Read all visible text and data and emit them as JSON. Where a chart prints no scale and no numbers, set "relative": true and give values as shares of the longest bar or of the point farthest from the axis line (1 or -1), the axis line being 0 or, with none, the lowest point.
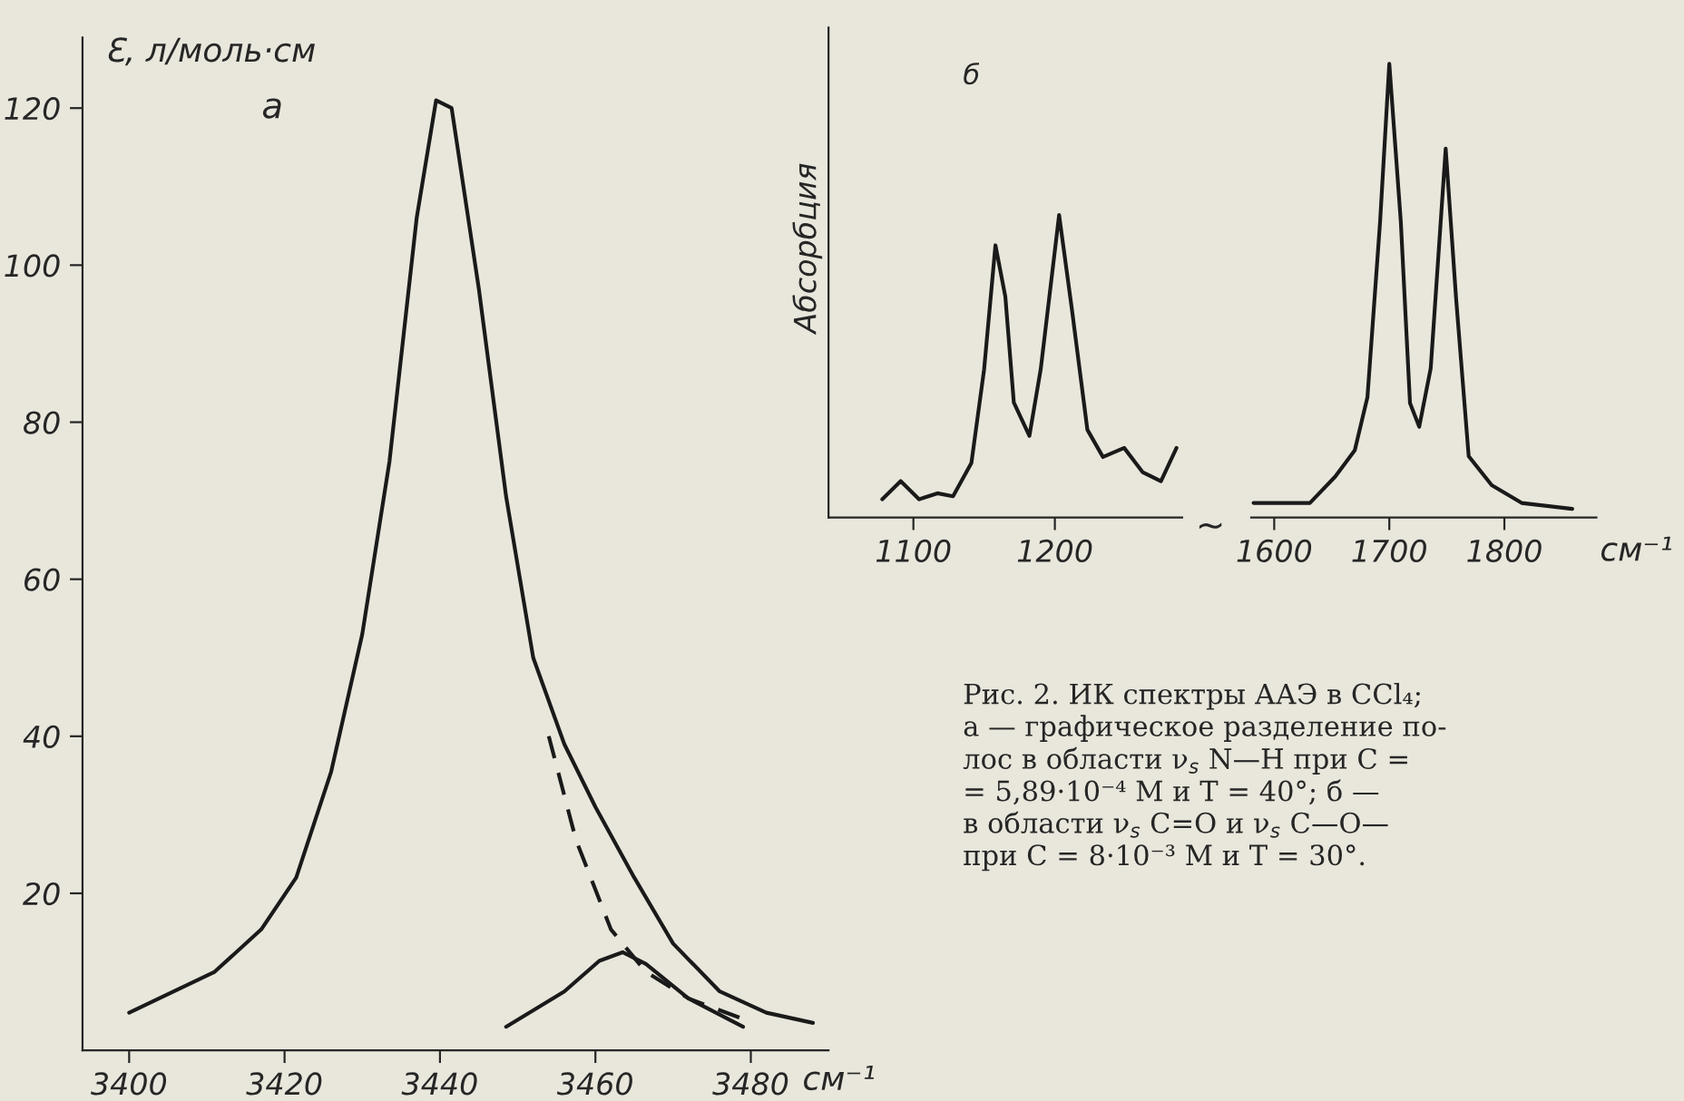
{
  "chart_data": [
    {
      "type": "line",
      "ylabel": "Ɛ, л/моль·см",
      "xlabel": "см⁻¹",
      "xlim": [
        3394,
        3490
      ],
      "ylim": [
        0,
        129
      ],
      "xticks": [
        3400,
        3420,
        3440,
        3460,
        3480
      ],
      "yticks": [
        20,
        40,
        60,
        80,
        100,
        120
      ],
      "grid": false,
      "legend": false,
      "series": [
        {
          "color": "#1a1a1a",
          "line_style": "solid",
          "x": [
            3400,
            3411,
            3417,
            3421.5,
            3426,
            3430,
            3433.5,
            3437,
            3439.5,
            3441.5,
            3445,
            3448.5,
            3452,
            3456,
            3460,
            3465,
            3470,
            3476,
            3482,
            3488
          ],
          "values": [
            4.8,
            10,
            15.4,
            22,
            35.5,
            53,
            75,
            106,
            121,
            120,
            97,
            70.6,
            50,
            39,
            31,
            22,
            13.6,
            7.5,
            4.8,
            3.5
          ]
        },
        {
          "color": "#1a1a1a",
          "line_style": "dashed",
          "x": [
            3454,
            3457.5,
            3462,
            3466.5,
            3472,
            3479
          ],
          "values": [
            40,
            26.8,
            15.4,
            10,
            6.6,
            4
          ]
        },
        {
          "color": "#1a1a1a",
          "line_style": "solid",
          "x": [
            3448.5,
            3456,
            3460.5,
            3463.5,
            3466.5,
            3472,
            3479
          ],
          "values": [
            3,
            7.5,
            11.4,
            12.5,
            11,
            6.6,
            3
          ]
        }
      ],
      "annotations": [
        "а",
        "Рис. 2. ИК спектры ААЭ в CCl₄;\nа — графическое разделение по-\nлос в области ν$_{s}$ N—H при C =\n= 5,89·10⁻⁴ M и T = 40°; б —\nв области ν$_{s}$ C=O и ν$_{s}$ C—O—\nпри C = 8·10⁻³ M и T = 30°."
      ]
    },
    {
      "type": "line",
      "relative": true,
      "ylabel": "Абсорбция",
      "xlim": [
        1040,
        1290
      ],
      "xticks": [
        1100,
        1200
      ],
      "tick_labels": "x",
      "grid": false,
      "legend": false,
      "series": [
        {
          "color": "#1a1a1a",
          "x": [
            1078,
            1091,
            1104,
            1117,
            1128,
            1141,
            1150,
            1158,
            1165,
            1171,
            1182,
            1190,
            1203,
            1212,
            1223,
            1234,
            1249,
            1262,
            1275,
            1286
          ],
          "values": [
            0.06,
            0.12,
            0.06,
            0.08,
            0.07,
            0.18,
            0.49,
            0.9,
            0.73,
            0.38,
            0.27,
            0.49,
            1.0,
            0.69,
            0.29,
            0.2,
            0.23,
            0.15,
            0.12,
            0.23
          ]
        }
      ],
      "annotations": [
        "б",
        "~"
      ]
    },
    {
      "type": "line",
      "relative": true,
      "xlabel": "см⁻¹",
      "xlim": [
        1580,
        1880
      ],
      "xticks": [
        1600,
        1700,
        1800
      ],
      "tick_labels": "x",
      "grid": false,
      "legend": false,
      "series": [
        {
          "color": "#1a1a1a",
          "x": [
            1582,
            1631,
            1653,
            1670,
            1681,
            1692,
            1700,
            1710,
            1718,
            1726,
            1736,
            1749,
            1758,
            1769,
            1789,
            1815,
            1859
          ],
          "values": [
            0.032,
            0.032,
            0.09,
            0.148,
            0.265,
            0.652,
            1.0,
            0.652,
            0.252,
            0.2,
            0.329,
            0.813,
            0.484,
            0.135,
            0.071,
            0.032,
            0.019
          ]
        }
      ]
    }
  ]
}
